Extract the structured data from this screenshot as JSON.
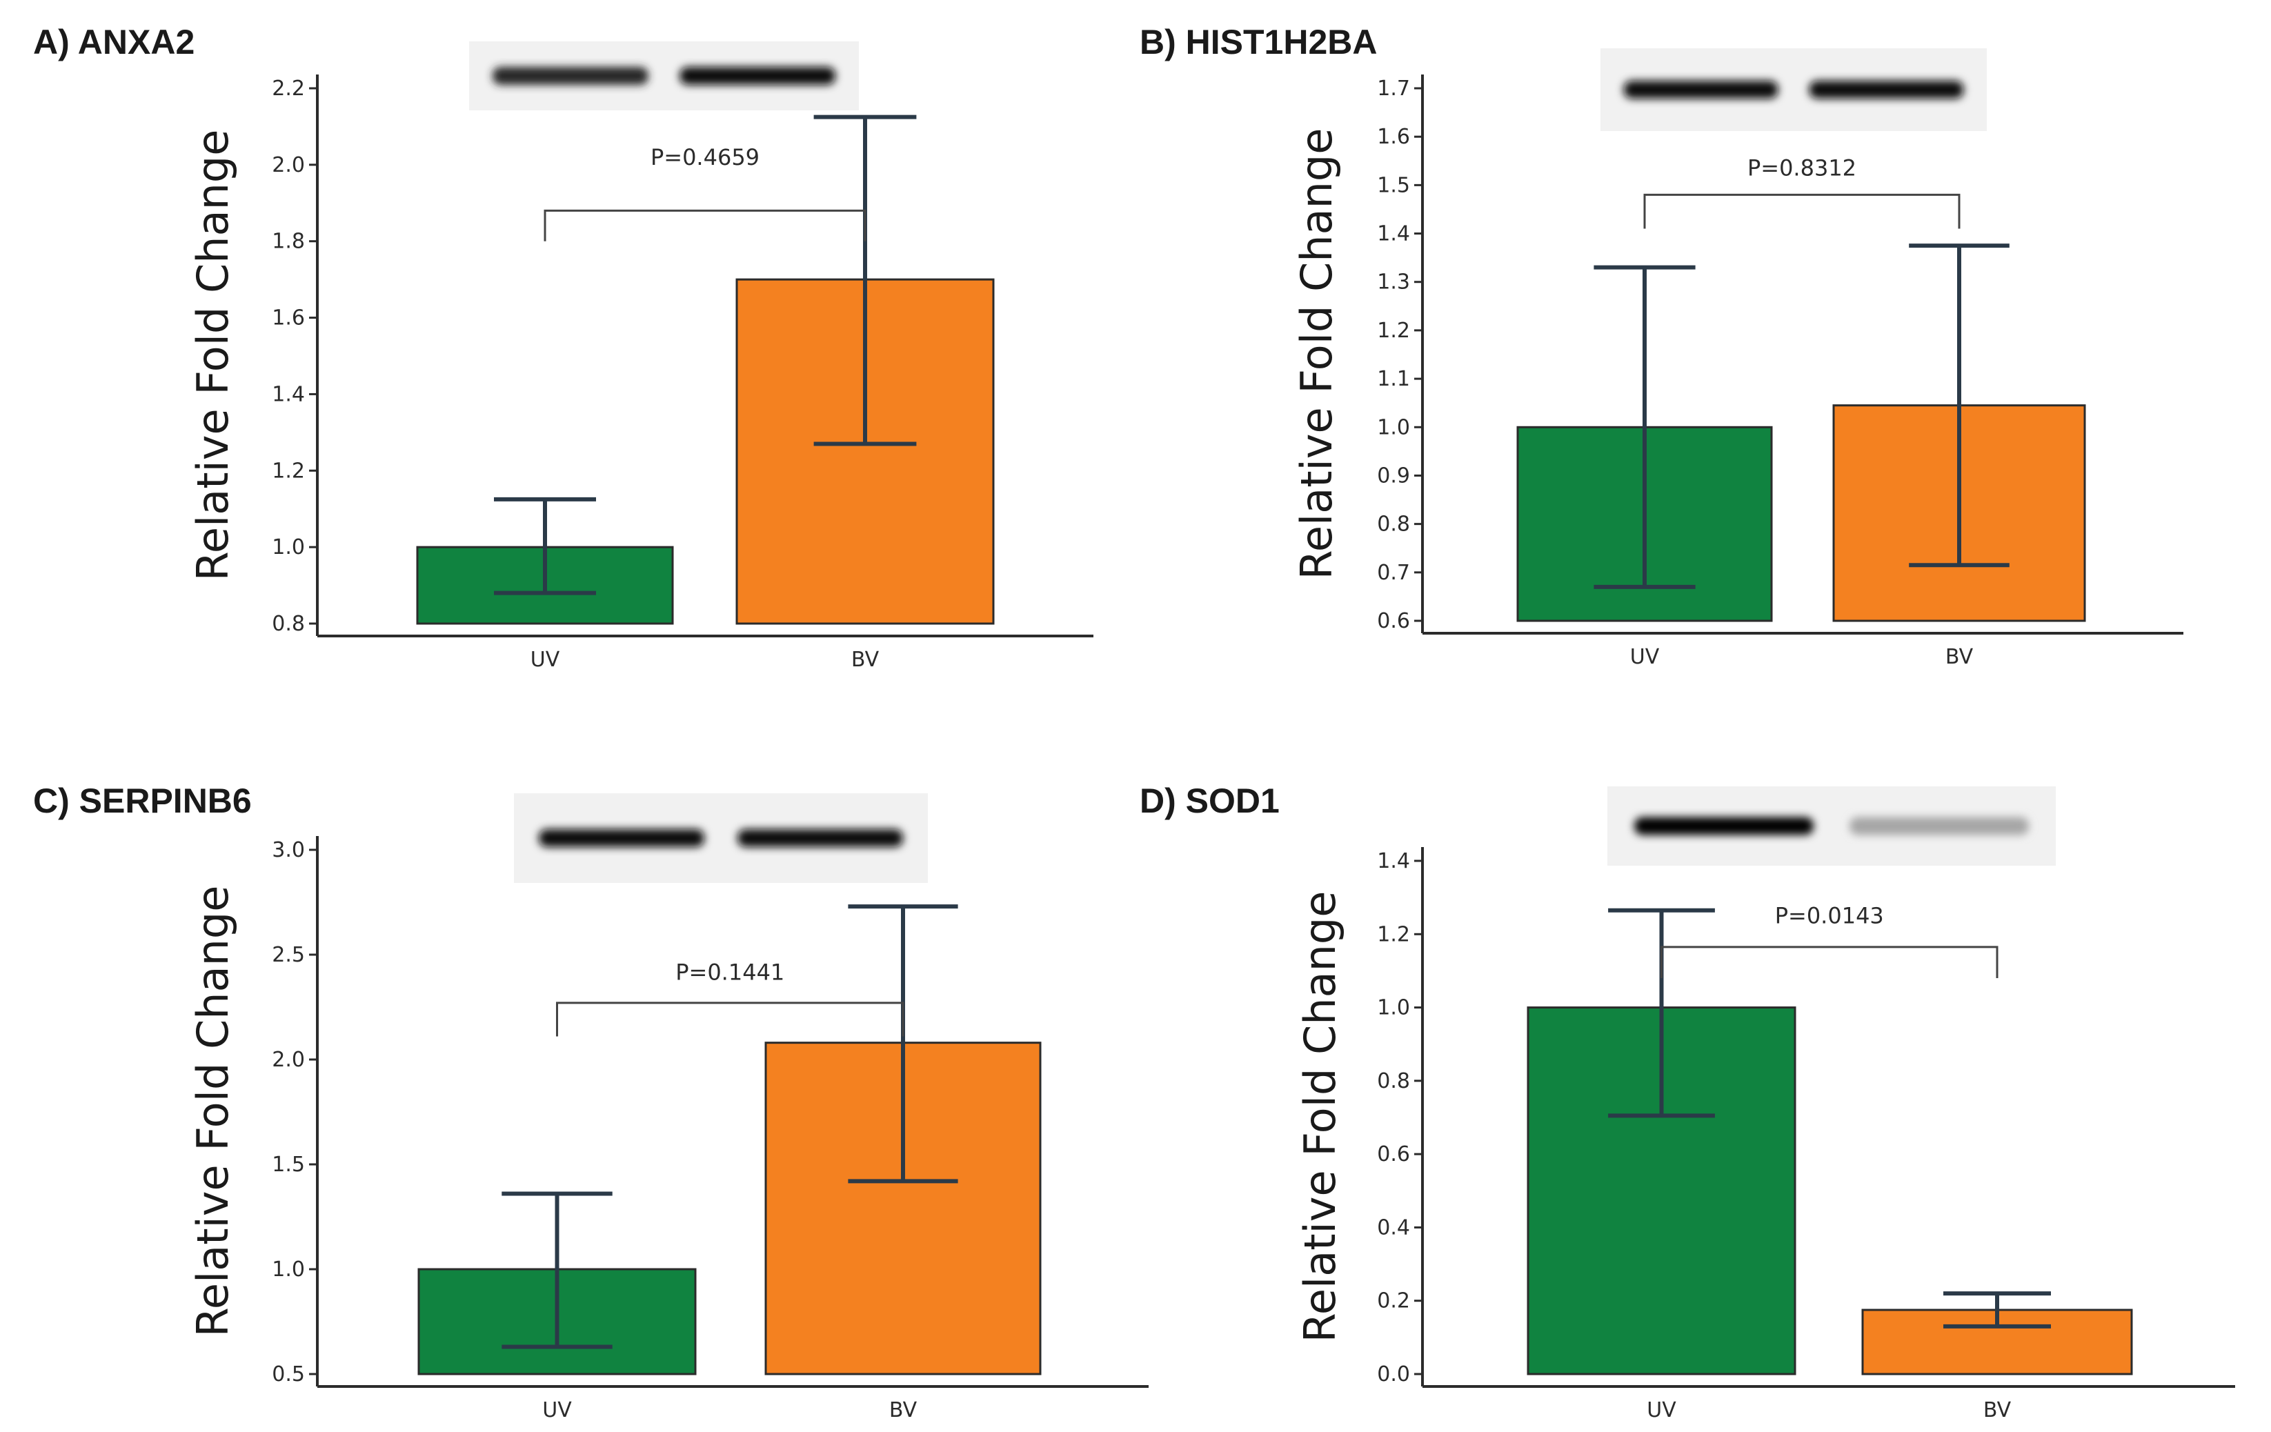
{
  "colors": {
    "uv": "#108340",
    "bv": "#f48120",
    "axis": "#2b2b2b",
    "error": "#2b3a48"
  },
  "chart_data": [
    {
      "type": "bar",
      "title": "A) ANXA2",
      "ylabel": "Relative Fold Change",
      "categories": [
        "UV",
        "BV"
      ],
      "values": [
        1.0,
        1.7
      ],
      "error_low": [
        0.88,
        1.27
      ],
      "error_high": [
        1.125,
        2.125
      ],
      "ylim": [
        0.8,
        2.2
      ],
      "yticks": [
        0.8,
        1.0,
        1.2,
        1.4,
        1.6,
        1.8,
        2.0,
        2.2
      ],
      "ytick_labels": [
        "0.8",
        "1.0",
        "1.2",
        "1.4",
        "1.6",
        "1.8",
        "2.0",
        "2.2"
      ],
      "bracket_label": "P=0.4659",
      "bracket_y": 1.88,
      "bracket_text_y": 2.0,
      "bracket_drop": 1.8,
      "blot": {
        "uv_intensity": 0.85,
        "bv_intensity": 0.95
      }
    },
    {
      "type": "bar",
      "title": "B) HIST1H2BA",
      "ylabel": "Relative Fold Change",
      "categories": [
        "UV",
        "BV"
      ],
      "values": [
        1.0,
        1.045
      ],
      "error_low": [
        0.67,
        0.715
      ],
      "error_high": [
        1.33,
        1.375
      ],
      "ylim": [
        0.6,
        1.7
      ],
      "yticks": [
        0.6,
        0.7,
        0.8,
        0.9,
        1.0,
        1.1,
        1.2,
        1.3,
        1.4,
        1.5,
        1.6,
        1.7
      ],
      "ytick_labels": [
        "0.6",
        "0.7",
        "0.8",
        "0.9",
        "1.0",
        "1.1",
        "1.2",
        "1.3",
        "1.4",
        "1.5",
        "1.6",
        "1.7"
      ],
      "bracket_label": "P=0.8312",
      "bracket_y": 1.48,
      "bracket_text_y": 1.52,
      "bracket_drop": 1.41,
      "blot": {
        "uv_intensity": 0.95,
        "bv_intensity": 0.95
      }
    },
    {
      "type": "bar",
      "title": "C) SERPINB6",
      "ylabel": "Relative Fold Change",
      "categories": [
        "UV",
        "BV"
      ],
      "values": [
        1.0,
        2.08
      ],
      "error_low": [
        0.63,
        1.42
      ],
      "error_high": [
        1.36,
        2.73
      ],
      "ylim": [
        0.5,
        3.0
      ],
      "yticks": [
        0.5,
        1.0,
        1.5,
        2.0,
        2.5,
        3.0
      ],
      "ytick_labels": [
        "0.5",
        "1.0",
        "1.5",
        "2.0",
        "2.5",
        "3.0"
      ],
      "bracket_label": "P=0.1441",
      "bracket_y": 2.27,
      "bracket_text_y": 2.38,
      "bracket_drop": 2.11,
      "blot": {
        "uv_intensity": 0.95,
        "bv_intensity": 0.95
      }
    },
    {
      "type": "bar",
      "title": "D) SOD1",
      "ylabel": "Relative Fold Change",
      "categories": [
        "UV",
        "BV"
      ],
      "values": [
        1.0,
        0.175
      ],
      "error_low": [
        0.705,
        0.13
      ],
      "error_high": [
        1.265,
        0.22
      ],
      "ylim": [
        0.0,
        1.4
      ],
      "yticks": [
        0.0,
        0.2,
        0.4,
        0.6,
        0.8,
        1.0,
        1.2,
        1.4
      ],
      "ytick_labels": [
        "0.0",
        "0.2",
        "0.4",
        "0.6",
        "0.8",
        "1.0",
        "1.2",
        "1.4"
      ],
      "bracket_label": "P=0.0143",
      "bracket_y": 1.165,
      "bracket_text_y": 1.23,
      "bracket_drop": 1.08,
      "blot": {
        "uv_intensity": 1.0,
        "bv_intensity": 0.35
      }
    }
  ]
}
